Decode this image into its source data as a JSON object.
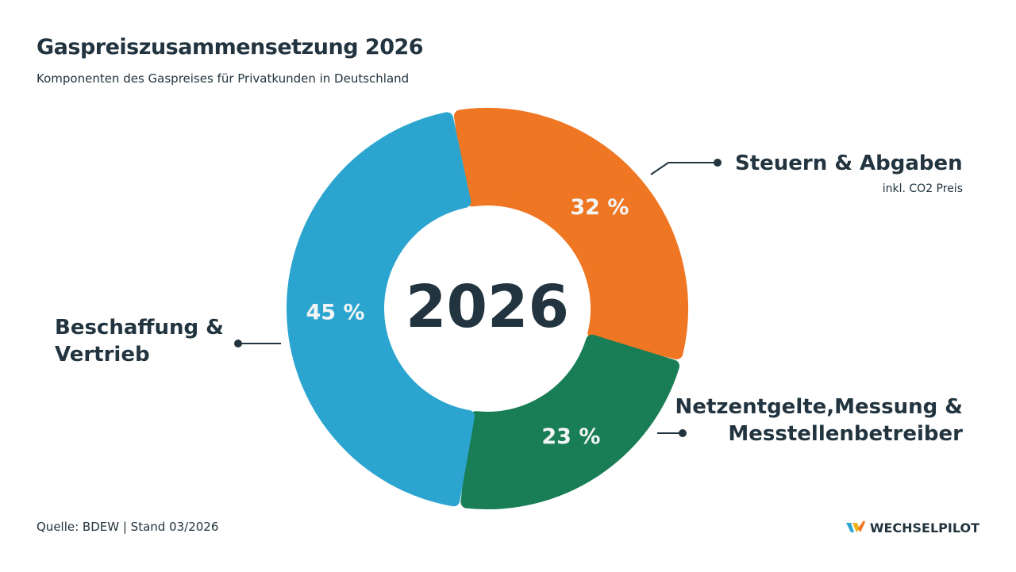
{
  "header": {
    "title": "Gaspreiszusammensetzung 2026",
    "subtitle": "Komponenten des Gaspreises für Privatkunden in Deutschland"
  },
  "chart_data": {
    "type": "pie",
    "center_label": "2026",
    "series": [
      {
        "name": "Steuern & Abgaben",
        "note": "inkl. CO2 Preis",
        "value": 32,
        "value_label": "32 %",
        "color": "#ef7622"
      },
      {
        "name": "Netzentgelte,Messung & Messtellenbetreiber",
        "value": 23,
        "value_label": "23 %",
        "color": "#197d55"
      },
      {
        "name": "Beschaffung & Vertrieb",
        "value": 45,
        "value_label": "45 %",
        "color": "#2ba5cf"
      }
    ]
  },
  "labels": {
    "steuern": "Steuern & Abgaben",
    "steuern_note": "inkl. CO2 Preis",
    "netz_line1": "Netzentgelte,Messung &",
    "netz_line2": "Messtellenbetreiber",
    "beschaffung_line1": "Beschaffung &",
    "beschaffung_line2": "Vertrieb"
  },
  "footer": {
    "source": "Quelle: BDEW | Stand 03/2026",
    "brand": "WECHSELPILOT"
  },
  "colors": {
    "text": "#22343f",
    "orange": "#ef7622",
    "green": "#197d55",
    "blue": "#2ba5cf"
  }
}
